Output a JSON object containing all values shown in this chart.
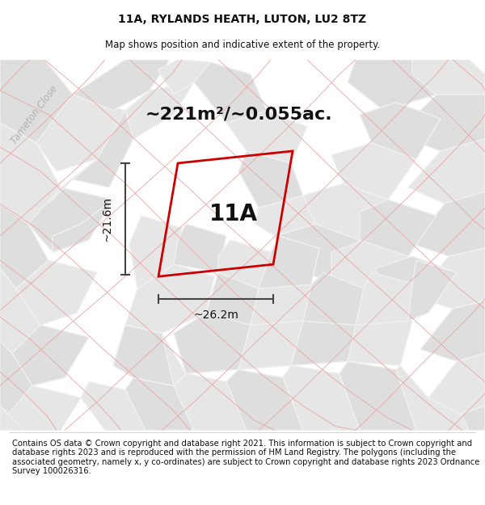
{
  "title": "11A, RYLANDS HEATH, LUTON, LU2 8TZ",
  "subtitle": "Map shows position and indicative extent of the property.",
  "area_label": "~221m²/~0.055ac.",
  "plot_label": "11A",
  "dim_width": "~26.2m",
  "dim_height": "~21.6m",
  "street_label": "Tameton Close",
  "footer": "Contains OS data © Crown copyright and database right 2021. This information is subject to Crown copyright and database rights 2023 and is reproduced with the permission of HM Land Registry. The polygons (including the associated geometry, namely x, y co-ordinates) are subject to Crown copyright and database rights 2023 Ordnance Survey 100026316.",
  "map_bg": "#f2f2f2",
  "block_light": "#e6e6e6",
  "block_mid": "#dedede",
  "block_dark": "#d8d8d8",
  "pink_line_color": "#e8a8a8",
  "gray_line_color": "#c8c8c8",
  "red_plot_color": "#cc0000",
  "dim_line_color": "#444444",
  "title_fontsize": 10,
  "subtitle_fontsize": 8.5,
  "area_fontsize": 16,
  "plot_label_fontsize": 20,
  "dim_fontsize": 10,
  "footer_fontsize": 7.2,
  "street_fontsize": 8.5,
  "title_weight": "bold"
}
